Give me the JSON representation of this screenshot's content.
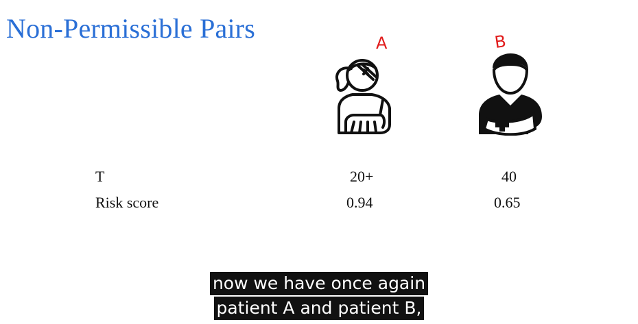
{
  "slide": {
    "title": "Non-Permissible Pairs"
  },
  "annotations": {
    "a": "A",
    "b": "B"
  },
  "icons": {
    "patient_a": "injured-woman-icon",
    "patient_b": "injured-man-with-arm-sling-icon"
  },
  "table": {
    "rows": [
      {
        "label": "T",
        "a": "20+",
        "b": "40"
      },
      {
        "label": "Risk score",
        "a": "0.94",
        "b": "0.65"
      }
    ]
  },
  "subtitles": {
    "line1": "now we have once again",
    "line2": "patient A and patient B,"
  },
  "colors": {
    "title": "#2a6fd6",
    "annotation": "#e11b1b",
    "caption_bg": "#111111"
  }
}
